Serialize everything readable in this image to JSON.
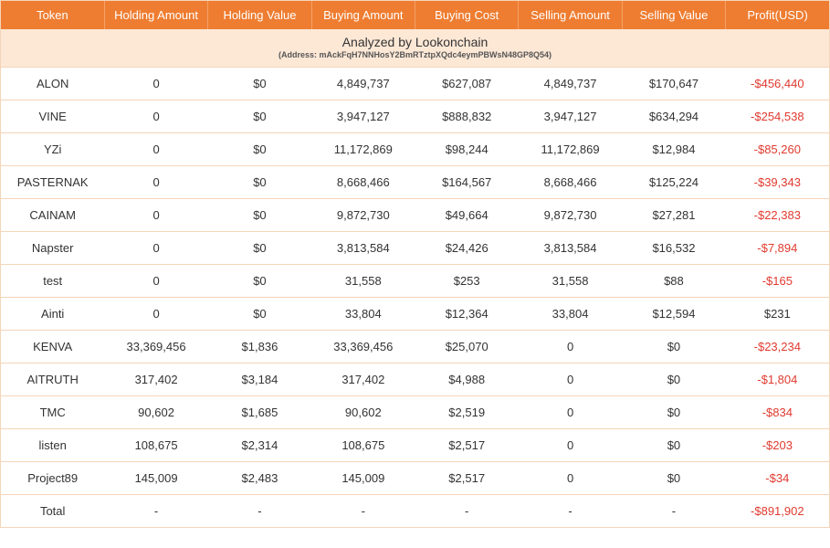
{
  "colors": {
    "header_bg": "#ee7d31",
    "header_text": "#ffffff",
    "banner_bg": "#fde8d6",
    "row_border": "#f5d5b8",
    "text": "#333333",
    "neg": "#e03a2f"
  },
  "columns": [
    "Token",
    "Holding Amount",
    "Holding Value",
    "Buying Amount",
    "Buying Cost",
    "Selling Amount",
    "Selling Value",
    "Profit(USD)"
  ],
  "col_widths_pct": [
    12.5,
    12.5,
    12.5,
    12.5,
    12.5,
    12.5,
    12.5,
    12.5
  ],
  "banner": {
    "title": "Analyzed by Lookonchain",
    "sub": "(Address: mAckFqH7NNHosY2BmRTztpXQdc4eymPBWsN48GP8Q54)"
  },
  "rows": [
    {
      "token": "ALON",
      "holding_amount": "0",
      "holding_value": "$0",
      "buying_amount": "4,849,737",
      "buying_cost": "$627,087",
      "selling_amount": "4,849,737",
      "selling_value": "$170,647",
      "profit": "-$456,440",
      "neg": true
    },
    {
      "token": "VINE",
      "holding_amount": "0",
      "holding_value": "$0",
      "buying_amount": "3,947,127",
      "buying_cost": "$888,832",
      "selling_amount": "3,947,127",
      "selling_value": "$634,294",
      "profit": "-$254,538",
      "neg": true
    },
    {
      "token": "YZi",
      "holding_amount": "0",
      "holding_value": "$0",
      "buying_amount": "11,172,869",
      "buying_cost": "$98,244",
      "selling_amount": "11,172,869",
      "selling_value": "$12,984",
      "profit": "-$85,260",
      "neg": true
    },
    {
      "token": "PASTERNAK",
      "holding_amount": "0",
      "holding_value": "$0",
      "buying_amount": "8,668,466",
      "buying_cost": "$164,567",
      "selling_amount": "8,668,466",
      "selling_value": "$125,224",
      "profit": "-$39,343",
      "neg": true
    },
    {
      "token": "CAINAM",
      "holding_amount": "0",
      "holding_value": "$0",
      "buying_amount": "9,872,730",
      "buying_cost": "$49,664",
      "selling_amount": "9,872,730",
      "selling_value": "$27,281",
      "profit": "-$22,383",
      "neg": true
    },
    {
      "token": "Napster",
      "holding_amount": "0",
      "holding_value": "$0",
      "buying_amount": "3,813,584",
      "buying_cost": "$24,426",
      "selling_amount": "3,813,584",
      "selling_value": "$16,532",
      "profit": "-$7,894",
      "neg": true
    },
    {
      "token": "test",
      "holding_amount": "0",
      "holding_value": "$0",
      "buying_amount": "31,558",
      "buying_cost": "$253",
      "selling_amount": "31,558",
      "selling_value": "$88",
      "profit": "-$165",
      "neg": true
    },
    {
      "token": "Ainti",
      "holding_amount": "0",
      "holding_value": "$0",
      "buying_amount": "33,804",
      "buying_cost": "$12,364",
      "selling_amount": "33,804",
      "selling_value": "$12,594",
      "profit": "$231",
      "neg": false
    },
    {
      "token": "KENVA",
      "holding_amount": "33,369,456",
      "holding_value": "$1,836",
      "buying_amount": "33,369,456",
      "buying_cost": "$25,070",
      "selling_amount": "0",
      "selling_value": "$0",
      "profit": "-$23,234",
      "neg": true
    },
    {
      "token": "AITRUTH",
      "holding_amount": "317,402",
      "holding_value": "$3,184",
      "buying_amount": "317,402",
      "buying_cost": "$4,988",
      "selling_amount": "0",
      "selling_value": "$0",
      "profit": "-$1,804",
      "neg": true
    },
    {
      "token": "TMC",
      "holding_amount": "90,602",
      "holding_value": "$1,685",
      "buying_amount": "90,602",
      "buying_cost": "$2,519",
      "selling_amount": "0",
      "selling_value": "$0",
      "profit": "-$834",
      "neg": true
    },
    {
      "token": "listen",
      "holding_amount": "108,675",
      "holding_value": "$2,314",
      "buying_amount": "108,675",
      "buying_cost": "$2,517",
      "selling_amount": "0",
      "selling_value": "$0",
      "profit": "-$203",
      "neg": true
    },
    {
      "token": "Project89",
      "holding_amount": "145,009",
      "holding_value": "$2,483",
      "buying_amount": "145,009",
      "buying_cost": "$2,517",
      "selling_amount": "0",
      "selling_value": "$0",
      "profit": "-$34",
      "neg": true
    }
  ],
  "total": {
    "label": "Total",
    "dash": "-",
    "profit": "-$891,902",
    "neg": true
  }
}
